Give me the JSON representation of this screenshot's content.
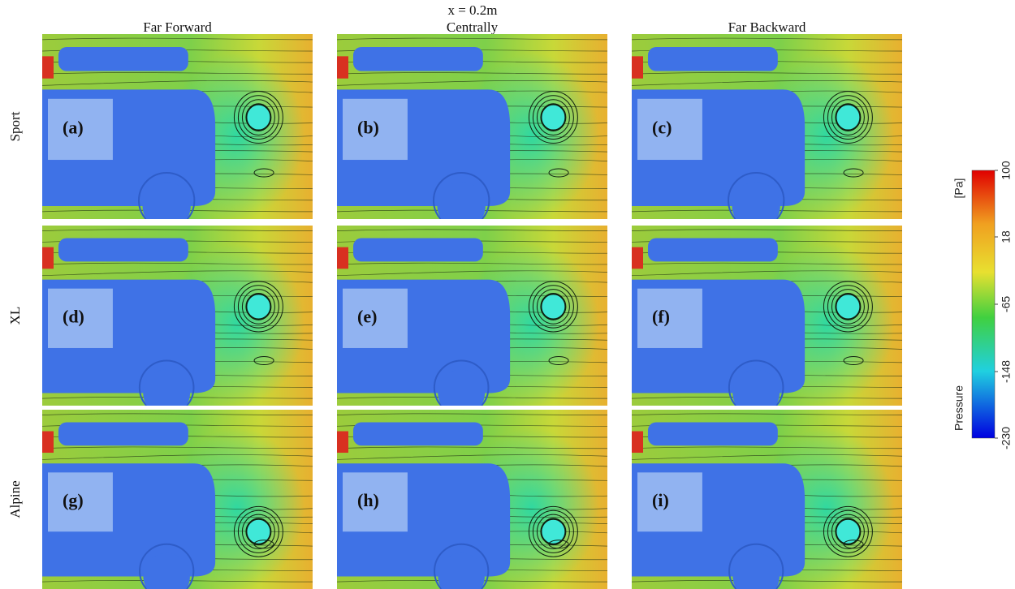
{
  "header": {
    "title": "x = 0.2m"
  },
  "columns": [
    "Far Forward",
    "Centrally",
    "Far Backward"
  ],
  "rows": [
    "Sport",
    "XL",
    "Alpine"
  ],
  "panels": [
    "(a)",
    "(b)",
    "(c)",
    "(d)",
    "(e)",
    "(f)",
    "(g)",
    "(h)",
    "(i)"
  ],
  "colorbar": {
    "title": "Pressure",
    "unit": "[Pa]",
    "ticks": [
      100,
      18,
      -65,
      -148,
      -230
    ]
  }
}
